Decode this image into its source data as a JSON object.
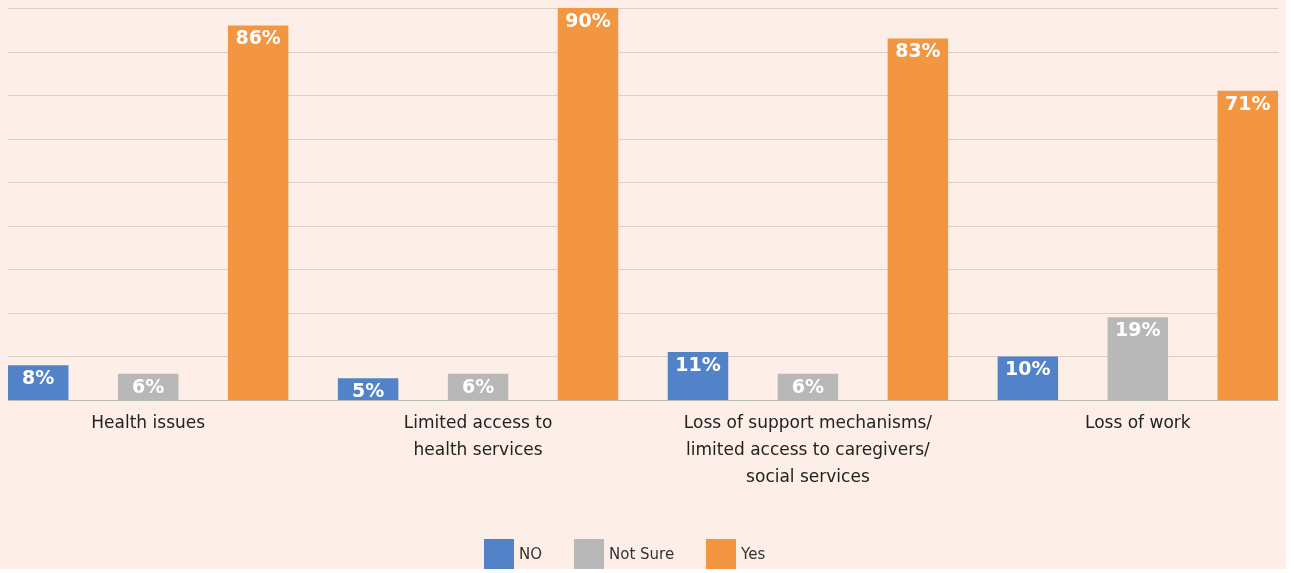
{
  "chart_data": {
    "type": "bar",
    "categories": [
      "Health issues",
      "Limited access to health services",
      "Loss of support mechanisms/ limited access to caregivers/ social services",
      "Loss of work"
    ],
    "series": [
      {
        "name": "NO",
        "color": "#5283c8",
        "values": [
          8,
          5,
          11,
          10
        ],
        "value_labels": [
          "8%",
          "5%",
          "11%",
          "10%"
        ]
      },
      {
        "name": "Not Sure",
        "color": "#b8b8b8",
        "values": [
          6,
          6,
          6,
          19
        ],
        "value_labels": [
          "6%",
          "6%",
          "6%",
          "19%"
        ]
      },
      {
        "name": "Yes",
        "color": "#f39642",
        "values": [
          86,
          90,
          83,
          71
        ],
        "value_labels": [
          "86%",
          "90%",
          "83%",
          "71%"
        ]
      }
    ],
    "tick_labels": "x",
    "grid": "y",
    "legend": "bottom"
  }
}
